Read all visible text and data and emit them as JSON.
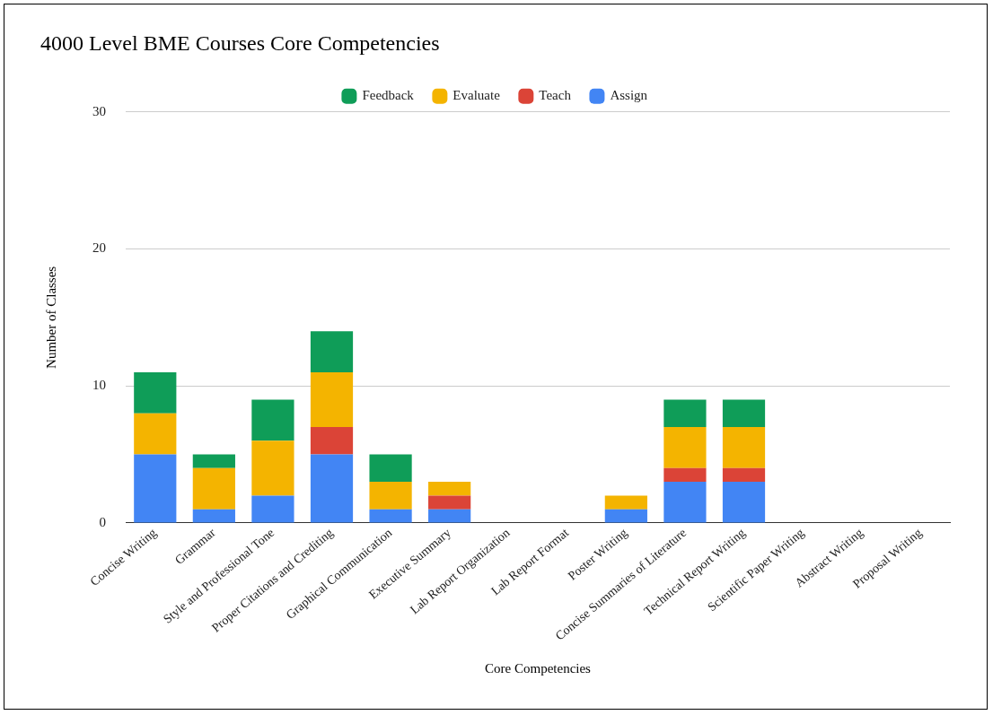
{
  "chart_data": {
    "type": "bar",
    "title": "4000 Level BME Courses Core Competencies",
    "xlabel": "Core Competencies",
    "ylabel": "Number of Classes",
    "categories": [
      "Concise Writing",
      "Grammar",
      "Style and Professional Tone",
      "Proper Citations and Crediting",
      "Graphical Communication",
      "Executive Summary",
      "Lab Report Organization",
      "Lab Report Format",
      "Poster Writing",
      "Concise Summaries of Literature",
      "Technical Report Writing",
      "Scientific Paper Writing",
      "Abstract Writing",
      "Proposal Writing"
    ],
    "stacked": true,
    "series": [
      {
        "name": "Assign",
        "color": "#4285f4",
        "values": [
          5,
          1,
          2,
          5,
          1,
          1,
          0,
          0,
          1,
          3,
          3,
          0,
          0,
          0
        ]
      },
      {
        "name": "Teach",
        "color": "#db4437",
        "values": [
          0,
          0,
          0,
          2,
          0,
          1,
          0,
          0,
          0,
          1,
          1,
          0,
          0,
          0
        ]
      },
      {
        "name": "Evaluate",
        "color": "#f4b400",
        "values": [
          3,
          3,
          4,
          4,
          2,
          1,
          0,
          0,
          1,
          3,
          3,
          0,
          0,
          0
        ]
      },
      {
        "name": "Feedback",
        "color": "#0f9d58",
        "values": [
          3,
          1,
          3,
          3,
          2,
          0,
          0,
          0,
          0,
          2,
          2,
          0,
          0,
          0
        ]
      }
    ],
    "ylim": [
      0,
      30
    ],
    "yticks": [
      0,
      10,
      20,
      30
    ],
    "grid": "y",
    "legend": "top"
  }
}
